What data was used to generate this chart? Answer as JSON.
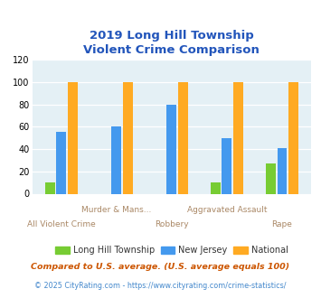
{
  "title": "2019 Long Hill Township\nViolent Crime Comparison",
  "categories_top": [
    "Murder & Mans...",
    "",
    "Aggravated Assault",
    ""
  ],
  "categories_bottom": [
    "All Violent Crime",
    "",
    "Robbery",
    "",
    "Rape"
  ],
  "local_values": [
    10,
    0,
    0,
    10,
    27
  ],
  "nj_values": [
    55,
    60,
    80,
    50,
    41
  ],
  "national_values": [
    100,
    100,
    100,
    100,
    100
  ],
  "local_color": "#77cc33",
  "nj_color": "#4499ee",
  "national_color": "#ffaa22",
  "ylim": [
    0,
    120
  ],
  "yticks": [
    0,
    20,
    40,
    60,
    80,
    100,
    120
  ],
  "bg_color": "#e4f0f5",
  "title_color": "#2255bb",
  "top_label_color": "#aa8866",
  "bottom_label_color": "#aa8866",
  "legend_labels": [
    "Long Hill Township",
    "New Jersey",
    "National"
  ],
  "legend_label_colors": [
    "#333333",
    "#333333",
    "#333333"
  ],
  "footnote1": "Compared to U.S. average. (U.S. average equals 100)",
  "footnote2": "© 2025 CityRating.com - https://www.cityrating.com/crime-statistics/",
  "footnote1_color": "#cc5500",
  "footnote2_color": "#4488cc"
}
